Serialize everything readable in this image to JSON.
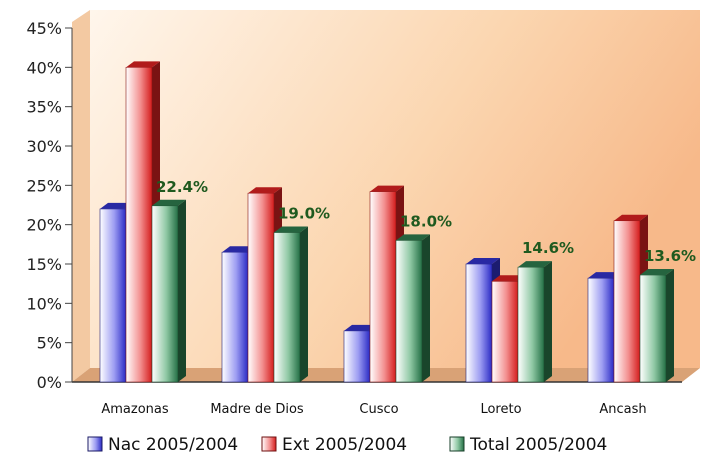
{
  "chart_data": {
    "type": "bar",
    "categories": [
      "Amazonas",
      "Madre de Dios",
      "Cusco",
      "Loreto",
      "Ancash"
    ],
    "series": [
      {
        "name": "Nac 2005/2004",
        "values": [
          22.0,
          16.5,
          6.5,
          15.0,
          13.2
        ],
        "color": "#3333cc"
      },
      {
        "name": "Ext 2005/2004",
        "values": [
          40.0,
          24.0,
          24.2,
          12.8,
          20.5
        ],
        "color": "#dd2222"
      },
      {
        "name": "Total 2005/2004",
        "values": [
          22.4,
          19.0,
          18.0,
          14.6,
          13.6
        ],
        "color": "#2e7d4f"
      }
    ],
    "data_labels": [
      "22.4%",
      "19.0%",
      "18.0%",
      "14.6%",
      "13.6%"
    ],
    "yticks": [
      "0%",
      "5%",
      "10%",
      "15%",
      "20%",
      "25%",
      "30%",
      "35%",
      "40%",
      "45%"
    ],
    "ylim": [
      0,
      45
    ],
    "grid": false,
    "legend_position": "bottom"
  }
}
